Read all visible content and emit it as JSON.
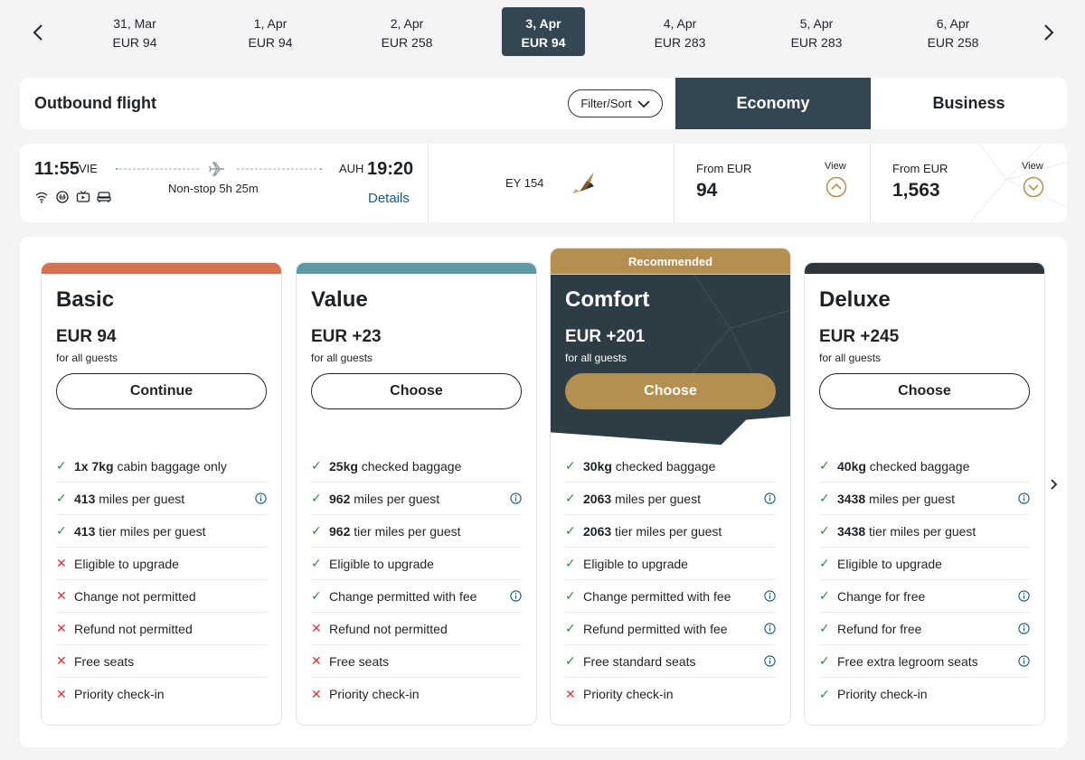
{
  "dates": [
    {
      "date": "31, Mar",
      "price": "EUR 94",
      "active": false
    },
    {
      "date": "1, Apr",
      "price": "EUR 94",
      "active": false
    },
    {
      "date": "2, Apr",
      "price": "EUR 258",
      "active": false
    },
    {
      "date": "3, Apr",
      "price": "EUR 94",
      "active": true
    },
    {
      "date": "4, Apr",
      "price": "EUR 283",
      "active": false
    },
    {
      "date": "5, Apr",
      "price": "EUR 283",
      "active": false
    },
    {
      "date": "6, Apr",
      "price": "EUR 258",
      "active": false
    }
  ],
  "outbound": {
    "title": "Outbound flight",
    "filter_label": "Filter/Sort",
    "tab_economy": "Economy",
    "tab_business": "Business"
  },
  "flight": {
    "dep_time": "11:55",
    "dep_code": "VIE",
    "arr_code": "AUH",
    "arr_time": "19:20",
    "duration": "Non-stop 5h 25m",
    "details_label": "Details",
    "flight_number": "EY 154",
    "amenities": [
      "wifi-icon",
      "power-icon",
      "entertainment-icon",
      "seat-icon"
    ],
    "economy": {
      "from_label": "From EUR",
      "amount": "94",
      "view_label": "View"
    },
    "business": {
      "from_label": "From EUR",
      "amount": "1,563",
      "view_label": "View"
    }
  },
  "fares": [
    {
      "name": "Basic",
      "price": "EUR 94",
      "sub": "for all guests",
      "button": "Continue",
      "stripe_color": "#d8704f",
      "features": [
        {
          "ok": true,
          "bold": "1x 7kg",
          "text": " cabin baggage only",
          "info": false
        },
        {
          "ok": true,
          "bold": "413",
          "text": " miles per guest",
          "info": true
        },
        {
          "ok": true,
          "bold": "413",
          "text": " tier miles per guest",
          "info": false
        },
        {
          "ok": false,
          "bold": "",
          "text": "Eligible to upgrade",
          "info": false
        },
        {
          "ok": false,
          "bold": "",
          "text": "Change not permitted",
          "info": false
        },
        {
          "ok": false,
          "bold": "",
          "text": "Refund not permitted",
          "info": false
        },
        {
          "ok": false,
          "bold": "",
          "text": "Free seats",
          "info": false
        },
        {
          "ok": false,
          "bold": "",
          "text": "Priority check-in",
          "info": false
        }
      ]
    },
    {
      "name": "Value",
      "price": "EUR +23",
      "sub": "for all guests",
      "button": "Choose",
      "stripe_color": "#5c9aaa",
      "features": [
        {
          "ok": true,
          "bold": "25kg",
          "text": " checked baggage",
          "info": false
        },
        {
          "ok": true,
          "bold": "962",
          "text": " miles per guest",
          "info": true
        },
        {
          "ok": true,
          "bold": "962",
          "text": " tier miles per guest",
          "info": false
        },
        {
          "ok": true,
          "bold": "",
          "text": "Eligible to upgrade",
          "info": false
        },
        {
          "ok": true,
          "bold": "",
          "text": "Change permitted with fee",
          "info": true
        },
        {
          "ok": false,
          "bold": "",
          "text": "Refund not permitted",
          "info": false
        },
        {
          "ok": false,
          "bold": "",
          "text": "Free seats",
          "info": false
        },
        {
          "ok": false,
          "bold": "",
          "text": "Priority check-in",
          "info": false
        }
      ]
    },
    {
      "name": "Comfort",
      "price": "EUR +201",
      "sub": "for all guests",
      "button": "Choose",
      "recommended_label": "Recommended",
      "stripe_color": "#b48f4f",
      "features": [
        {
          "ok": true,
          "bold": "30kg",
          "text": " checked baggage",
          "info": false
        },
        {
          "ok": true,
          "bold": "2063",
          "text": " miles per guest",
          "info": true
        },
        {
          "ok": true,
          "bold": "2063",
          "text": " tier miles per guest",
          "info": false
        },
        {
          "ok": true,
          "bold": "",
          "text": "Eligible to upgrade",
          "info": false
        },
        {
          "ok": true,
          "bold": "",
          "text": "Change permitted with fee",
          "info": true
        },
        {
          "ok": true,
          "bold": "",
          "text": "Refund permitted with fee",
          "info": true
        },
        {
          "ok": true,
          "bold": "",
          "text": "Free standard seats",
          "info": true
        },
        {
          "ok": false,
          "bold": "",
          "text": "Priority check-in",
          "info": false
        }
      ]
    },
    {
      "name": "Deluxe",
      "price": "EUR +245",
      "sub": "for all guests",
      "button": "Choose",
      "stripe_color": "#2d383d",
      "features": [
        {
          "ok": true,
          "bold": "40kg",
          "text": " checked baggage",
          "info": false
        },
        {
          "ok": true,
          "bold": "3438",
          "text": " miles per guest",
          "info": true
        },
        {
          "ok": true,
          "bold": "3438",
          "text": " tier miles per guest",
          "info": false
        },
        {
          "ok": true,
          "bold": "",
          "text": "Eligible to upgrade",
          "info": false
        },
        {
          "ok": true,
          "bold": "",
          "text": "Change for free",
          "info": true
        },
        {
          "ok": true,
          "bold": "",
          "text": "Refund for free",
          "info": true
        },
        {
          "ok": true,
          "bold": "",
          "text": "Free extra legroom seats",
          "info": true
        },
        {
          "ok": true,
          "bold": "",
          "text": "Priority check-in",
          "info": false
        }
      ]
    }
  ],
  "colors": {
    "primary_dark": "#334652",
    "gold": "#b48f4f",
    "link_blue": "#1b5a86",
    "check_green": "#2c8a45",
    "cross_red": "#d33737"
  }
}
